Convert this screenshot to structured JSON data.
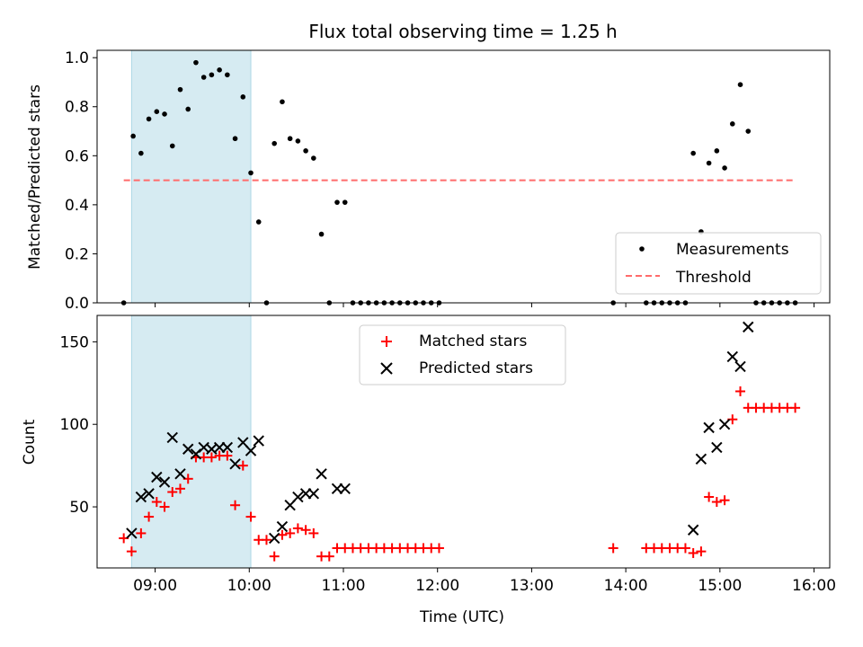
{
  "chart_data": [
    {
      "type": "scatter",
      "title": "Flux total observing time = 1.25 h",
      "ylabel": "Matched/Predicted stars",
      "xlabel": "",
      "xlim": [
        "08:23",
        "16:10"
      ],
      "ylim": [
        0,
        1.03
      ],
      "x_ticks": [
        "09:00",
        "10:00",
        "11:00",
        "12:00",
        "13:00",
        "14:00",
        "15:00",
        "16:00"
      ],
      "y_ticks": [
        "0.0",
        "0.2",
        "0.4",
        "0.6",
        "0.8",
        "1.0"
      ],
      "shaded_span": {
        "start": "08:45",
        "end": "10:01",
        "color": "#add8e6"
      },
      "threshold": {
        "name": "Threshold",
        "value": 0.5,
        "x_start": "08:40",
        "x_end": "15:48",
        "color": "#ff6b6b",
        "style": "dashed"
      },
      "legend": {
        "position": "lower right",
        "entries": [
          "Measurements",
          "Threshold"
        ]
      },
      "series": [
        {
          "name": "Measurements",
          "color": "#000000",
          "marker": "dot",
          "points": [
            [
              "08:40",
              0.0
            ],
            [
              "08:46",
              0.68
            ],
            [
              "08:51",
              0.61
            ],
            [
              "08:56",
              0.75
            ],
            [
              "09:01",
              0.78
            ],
            [
              "09:06",
              0.77
            ],
            [
              "09:11",
              0.64
            ],
            [
              "09:16",
              0.87
            ],
            [
              "09:21",
              0.79
            ],
            [
              "09:26",
              0.98
            ],
            [
              "09:31",
              0.92
            ],
            [
              "09:36",
              0.93
            ],
            [
              "09:41",
              0.95
            ],
            [
              "09:46",
              0.93
            ],
            [
              "09:51",
              0.67
            ],
            [
              "09:56",
              0.84
            ],
            [
              "10:01",
              0.53
            ],
            [
              "10:06",
              0.33
            ],
            [
              "10:11",
              0.0
            ],
            [
              "10:16",
              0.65
            ],
            [
              "10:21",
              0.82
            ],
            [
              "10:26",
              0.67
            ],
            [
              "10:31",
              0.66
            ],
            [
              "10:36",
              0.62
            ],
            [
              "10:41",
              0.59
            ],
            [
              "10:46",
              0.28
            ],
            [
              "10:51",
              0.0
            ],
            [
              "10:56",
              0.41
            ],
            [
              "11:01",
              0.41
            ],
            [
              "11:06",
              0.0
            ],
            [
              "11:11",
              0.0
            ],
            [
              "11:16",
              0.0
            ],
            [
              "11:21",
              0.0
            ],
            [
              "11:26",
              0.0
            ],
            [
              "11:31",
              0.0
            ],
            [
              "11:36",
              0.0
            ],
            [
              "11:41",
              0.0
            ],
            [
              "11:46",
              0.0
            ],
            [
              "11:51",
              0.0
            ],
            [
              "11:56",
              0.0
            ],
            [
              "12:01",
              0.0
            ],
            [
              "13:52",
              0.0
            ],
            [
              "14:13",
              0.0
            ],
            [
              "14:18",
              0.0
            ],
            [
              "14:23",
              0.0
            ],
            [
              "14:28",
              0.0
            ],
            [
              "14:33",
              0.0
            ],
            [
              "14:38",
              0.0
            ],
            [
              "14:43",
              0.61
            ],
            [
              "14:48",
              0.29
            ],
            [
              "14:53",
              0.57
            ],
            [
              "14:58",
              0.62
            ],
            [
              "15:03",
              0.55
            ],
            [
              "15:08",
              0.73
            ],
            [
              "15:13",
              0.89
            ],
            [
              "15:18",
              0.7
            ],
            [
              "15:23",
              0.0
            ],
            [
              "15:28",
              0.0
            ],
            [
              "15:33",
              0.0
            ],
            [
              "15:38",
              0.0
            ],
            [
              "15:43",
              0.0
            ],
            [
              "15:48",
              0.0
            ]
          ]
        }
      ]
    },
    {
      "type": "scatter",
      "title": "",
      "ylabel": "Count",
      "xlabel": "Time (UTC)",
      "xlim": [
        "08:23",
        "16:10"
      ],
      "ylim": [
        13,
        166
      ],
      "x_ticks": [
        "09:00",
        "10:00",
        "11:00",
        "12:00",
        "13:00",
        "14:00",
        "15:00",
        "16:00"
      ],
      "y_ticks": [
        "50",
        "100",
        "150"
      ],
      "shaded_span": {
        "start": "08:45",
        "end": "10:01",
        "color": "#add8e6"
      },
      "legend": {
        "position": "upper center",
        "entries": [
          "Matched stars",
          "Predicted stars"
        ]
      },
      "series": [
        {
          "name": "Matched stars",
          "color": "#ff0000",
          "marker": "plus",
          "points": [
            [
              "08:40",
              31
            ],
            [
              "08:45",
              23
            ],
            [
              "08:51",
              34
            ],
            [
              "08:56",
              44
            ],
            [
              "09:01",
              53
            ],
            [
              "09:06",
              50
            ],
            [
              "09:11",
              59
            ],
            [
              "09:16",
              61
            ],
            [
              "09:21",
              67
            ],
            [
              "09:26",
              80
            ],
            [
              "09:31",
              80
            ],
            [
              "09:36",
              80
            ],
            [
              "09:41",
              81
            ],
            [
              "09:46",
              81
            ],
            [
              "09:51",
              51
            ],
            [
              "09:56",
              75
            ],
            [
              "10:01",
              44
            ],
            [
              "10:06",
              30
            ],
            [
              "10:11",
              30
            ],
            [
              "10:16",
              20
            ],
            [
              "10:21",
              33
            ],
            [
              "10:26",
              34
            ],
            [
              "10:31",
              37
            ],
            [
              "10:36",
              36
            ],
            [
              "10:41",
              34
            ],
            [
              "10:46",
              20
            ],
            [
              "10:51",
              20
            ],
            [
              "10:56",
              25
            ],
            [
              "11:01",
              25
            ],
            [
              "11:06",
              25
            ],
            [
              "11:11",
              25
            ],
            [
              "11:16",
              25
            ],
            [
              "11:21",
              25
            ],
            [
              "11:26",
              25
            ],
            [
              "11:31",
              25
            ],
            [
              "11:36",
              25
            ],
            [
              "11:41",
              25
            ],
            [
              "11:46",
              25
            ],
            [
              "11:51",
              25
            ],
            [
              "11:56",
              25
            ],
            [
              "12:01",
              25
            ],
            [
              "13:52",
              25
            ],
            [
              "14:13",
              25
            ],
            [
              "14:18",
              25
            ],
            [
              "14:23",
              25
            ],
            [
              "14:28",
              25
            ],
            [
              "14:33",
              25
            ],
            [
              "14:38",
              25
            ],
            [
              "14:43",
              22
            ],
            [
              "14:48",
              23
            ],
            [
              "14:53",
              56
            ],
            [
              "14:58",
              53
            ],
            [
              "15:03",
              54
            ],
            [
              "15:08",
              103
            ],
            [
              "15:13",
              120
            ],
            [
              "15:18",
              110
            ],
            [
              "15:23",
              110
            ],
            [
              "15:28",
              110
            ],
            [
              "15:33",
              110
            ],
            [
              "15:38",
              110
            ],
            [
              "15:43",
              110
            ],
            [
              "15:48",
              110
            ]
          ]
        },
        {
          "name": "Predicted stars",
          "color": "#000000",
          "marker": "x",
          "points": [
            [
              "08:45",
              34
            ],
            [
              "08:51",
              56
            ],
            [
              "08:56",
              58
            ],
            [
              "09:01",
              68
            ],
            [
              "09:06",
              65
            ],
            [
              "09:11",
              92
            ],
            [
              "09:16",
              70
            ],
            [
              "09:21",
              85
            ],
            [
              "09:26",
              82
            ],
            [
              "09:31",
              86
            ],
            [
              "09:36",
              85
            ],
            [
              "09:41",
              86
            ],
            [
              "09:46",
              86
            ],
            [
              "09:51",
              76
            ],
            [
              "09:56",
              89
            ],
            [
              "10:01",
              84
            ],
            [
              "10:06",
              90
            ],
            [
              "10:16",
              31
            ],
            [
              "10:21",
              38
            ],
            [
              "10:26",
              51
            ],
            [
              "10:31",
              56
            ],
            [
              "10:36",
              58
            ],
            [
              "10:41",
              58
            ],
            [
              "10:46",
              70
            ],
            [
              "10:56",
              61
            ],
            [
              "11:01",
              61
            ],
            [
              "14:43",
              36
            ],
            [
              "14:48",
              79
            ],
            [
              "14:53",
              98
            ],
            [
              "14:58",
              86
            ],
            [
              "15:03",
              100
            ],
            [
              "15:08",
              141
            ],
            [
              "15:13",
              135
            ],
            [
              "15:18",
              159
            ]
          ]
        }
      ]
    }
  ]
}
